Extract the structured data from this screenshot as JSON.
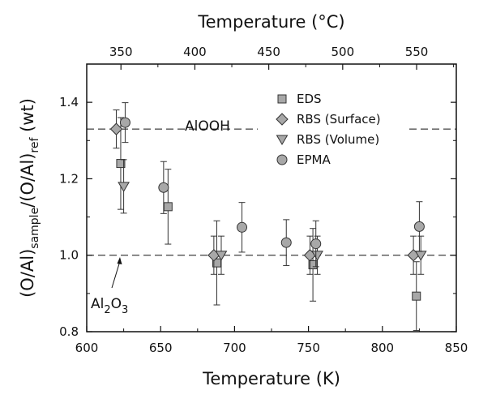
{
  "chart_data": {
    "type": "scatter",
    "xlabel": "Temperature (K)",
    "x2label": "Temperature (°C)",
    "ylabel": {
      "main": "(O/Al)",
      "sub1": "sample",
      "mid": "/(O/Al)",
      "sub2": "ref",
      "unit": " (wt)"
    },
    "xlim": [
      600,
      850
    ],
    "ylim": [
      0.8,
      1.5
    ],
    "x_ticks": [
      600,
      650,
      700,
      750,
      800,
      850
    ],
    "x_tick_labels": [
      "600",
      "650",
      "700",
      "750",
      "800",
      "850"
    ],
    "x2_ticks": [
      350,
      400,
      450,
      500,
      550
    ],
    "x2_tick_labels": [
      "350",
      "400",
      "450",
      "500",
      "550"
    ],
    "x2_offset": 273.15,
    "y_ticks": [
      0.8,
      1.0,
      1.2,
      1.4
    ],
    "y_tick_labels": [
      "0.8",
      "1.0",
      "1.2",
      "1.4"
    ],
    "reference_lines": [
      {
        "y": 1.33,
        "label": "AlOOH"
      },
      {
        "y": 1.0,
        "label_parts": [
          "Al",
          "2",
          "O",
          "3"
        ]
      }
    ],
    "legend_position": "top-right",
    "series": [
      {
        "name": "EDS",
        "marker": "square",
        "points": [
          {
            "x": 623,
            "y": 1.24,
            "err": 0.12
          },
          {
            "x": 655,
            "y": 1.127,
            "err": 0.098
          },
          {
            "x": 688,
            "y": 0.98,
            "err": 0.11
          },
          {
            "x": 753,
            "y": 0.975,
            "err": 0.095
          },
          {
            "x": 823,
            "y": 0.893,
            "err": 0.09
          }
        ]
      },
      {
        "name": "RBS (Surface)",
        "marker": "diamond",
        "points": [
          {
            "x": 620,
            "y": 1.33,
            "err": 0.05
          },
          {
            "x": 686,
            "y": 1.0,
            "err": 0.05
          },
          {
            "x": 751,
            "y": 1.0,
            "err": 0.05
          },
          {
            "x": 821,
            "y": 1.0,
            "err": 0.05
          }
        ]
      },
      {
        "name": "RBS (Volume)",
        "marker": "triangle-down",
        "points": [
          {
            "x": 625,
            "y": 1.18,
            "err": 0.07
          },
          {
            "x": 691,
            "y": 1.0,
            "err": 0.05
          },
          {
            "x": 756,
            "y": 1.0,
            "err": 0.05
          },
          {
            "x": 826,
            "y": 1.0,
            "err": 0.05
          }
        ]
      },
      {
        "name": "EPMA",
        "marker": "circle",
        "points": [
          {
            "x": 626,
            "y": 1.347,
            "err": 0.052
          },
          {
            "x": 652,
            "y": 1.177,
            "err": 0.068
          },
          {
            "x": 705,
            "y": 1.073,
            "err": 0.065
          },
          {
            "x": 735,
            "y": 1.033,
            "err": 0.06
          },
          {
            "x": 755,
            "y": 1.03,
            "err": 0.06
          },
          {
            "x": 825,
            "y": 1.075,
            "err": 0.065
          }
        ]
      }
    ]
  }
}
